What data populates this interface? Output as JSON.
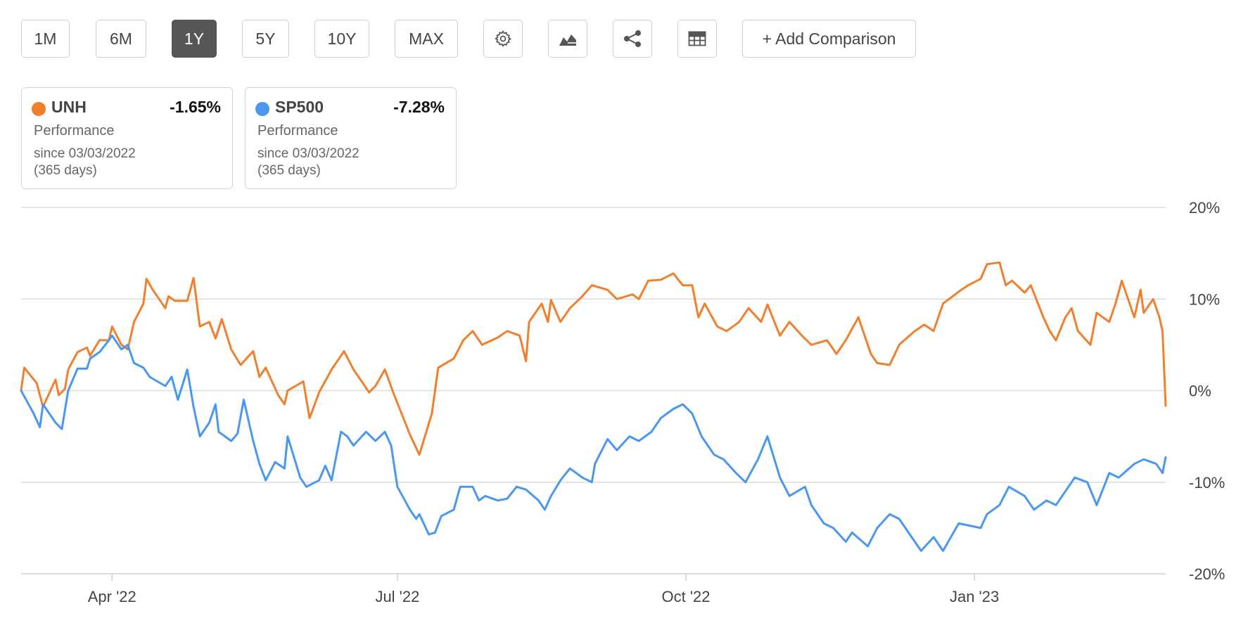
{
  "toolbar": {
    "ranges": [
      "1M",
      "6M",
      "1Y",
      "5Y",
      "10Y",
      "MAX"
    ],
    "active_range": "1Y",
    "add_comparison_label": "+ Add Comparison",
    "icons": [
      "gear-icon",
      "chart-type-icon",
      "share-icon",
      "table-icon"
    ]
  },
  "legend": [
    {
      "symbol": "UNH",
      "change": "-1.65%",
      "metric": "Performance",
      "since": "since 03/03/2022",
      "days": "(365 days)",
      "color": "#F07F2E"
    },
    {
      "symbol": "SP500",
      "change": "-7.28%",
      "metric": "Performance",
      "since": "since 03/03/2022",
      "days": "(365 days)",
      "color": "#4A97F2"
    }
  ],
  "chart_data": {
    "type": "line",
    "title": "",
    "xlabel": "",
    "ylabel": "",
    "x_range": [
      "2022-03-03",
      "2023-03-03"
    ],
    "ylim": [
      -20,
      20
    ],
    "y_ticks": [
      20,
      10,
      0,
      -10,
      -20
    ],
    "y_tick_labels": [
      "20%",
      "10%",
      "0%",
      "-10%",
      "-20%"
    ],
    "y_axis_position": "right",
    "x_ticks": [
      {
        "date": "2022-04-01",
        "label": "Apr '22"
      },
      {
        "date": "2022-07-01",
        "label": "Jul '22"
      },
      {
        "date": "2022-10-01",
        "label": "Oct '22"
      },
      {
        "date": "2023-01-01",
        "label": "Jan '23"
      }
    ],
    "grid": "horizontal",
    "series": [
      {
        "name": "UNH",
        "color": "#F07F2E",
        "points": [
          [
            "2022-03-03",
            0.0
          ],
          [
            "2022-03-04",
            2.5
          ],
          [
            "2022-03-08",
            0.8
          ],
          [
            "2022-03-10",
            -1.8
          ],
          [
            "2022-03-11",
            -1.0
          ],
          [
            "2022-03-14",
            1.2
          ],
          [
            "2022-03-15",
            -0.5
          ],
          [
            "2022-03-17",
            0.2
          ],
          [
            "2022-03-18",
            2.3
          ],
          [
            "2022-03-21",
            4.2
          ],
          [
            "2022-03-24",
            4.7
          ],
          [
            "2022-03-25",
            3.8
          ],
          [
            "2022-03-28",
            5.5
          ],
          [
            "2022-03-31",
            5.5
          ],
          [
            "2022-04-01",
            7.0
          ],
          [
            "2022-04-04",
            5.0
          ],
          [
            "2022-04-06",
            4.5
          ],
          [
            "2022-04-08",
            7.5
          ],
          [
            "2022-04-11",
            9.5
          ],
          [
            "2022-04-12",
            12.2
          ],
          [
            "2022-04-14",
            11.0
          ],
          [
            "2022-04-18",
            9.0
          ],
          [
            "2022-04-19",
            10.3
          ],
          [
            "2022-04-21",
            9.8
          ],
          [
            "2022-04-25",
            9.8
          ],
          [
            "2022-04-27",
            12.3
          ],
          [
            "2022-04-29",
            7.0
          ],
          [
            "2022-05-02",
            7.5
          ],
          [
            "2022-05-04",
            5.7
          ],
          [
            "2022-05-06",
            7.8
          ],
          [
            "2022-05-09",
            4.5
          ],
          [
            "2022-05-12",
            2.8
          ],
          [
            "2022-05-16",
            4.3
          ],
          [
            "2022-05-18",
            1.5
          ],
          [
            "2022-05-20",
            2.5
          ],
          [
            "2022-05-24",
            -0.5
          ],
          [
            "2022-05-26",
            -1.5
          ],
          [
            "2022-05-27",
            0.0
          ],
          [
            "2022-06-01",
            1.0
          ],
          [
            "2022-06-03",
            -3.0
          ],
          [
            "2022-06-06",
            -0.2
          ],
          [
            "2022-06-10",
            2.3
          ],
          [
            "2022-06-14",
            4.3
          ],
          [
            "2022-06-17",
            2.3
          ],
          [
            "2022-06-22",
            -0.2
          ],
          [
            "2022-06-24",
            0.5
          ],
          [
            "2022-06-27",
            2.3
          ],
          [
            "2022-06-30",
            -0.5
          ],
          [
            "2022-07-05",
            -4.8
          ],
          [
            "2022-07-08",
            -7.0
          ],
          [
            "2022-07-12",
            -2.5
          ],
          [
            "2022-07-14",
            2.5
          ],
          [
            "2022-07-19",
            3.5
          ],
          [
            "2022-07-22",
            5.5
          ],
          [
            "2022-07-25",
            6.5
          ],
          [
            "2022-07-28",
            5.0
          ],
          [
            "2022-08-02",
            5.8
          ],
          [
            "2022-08-05",
            6.5
          ],
          [
            "2022-08-09",
            6.0
          ],
          [
            "2022-08-11",
            3.2
          ],
          [
            "2022-08-12",
            7.5
          ],
          [
            "2022-08-16",
            9.5
          ],
          [
            "2022-08-18",
            7.5
          ],
          [
            "2022-08-19",
            9.9
          ],
          [
            "2022-08-22",
            7.5
          ],
          [
            "2022-08-25",
            9.0
          ],
          [
            "2022-08-29",
            10.3
          ],
          [
            "2022-09-01",
            11.5
          ],
          [
            "2022-09-06",
            11.0
          ],
          [
            "2022-09-09",
            10.0
          ],
          [
            "2022-09-14",
            10.5
          ],
          [
            "2022-09-16",
            10.0
          ],
          [
            "2022-09-19",
            12.0
          ],
          [
            "2022-09-23",
            12.1
          ],
          [
            "2022-09-27",
            12.8
          ],
          [
            "2022-09-30",
            11.5
          ],
          [
            "2022-10-03",
            11.5
          ],
          [
            "2022-10-05",
            8.0
          ],
          [
            "2022-10-07",
            9.5
          ],
          [
            "2022-10-11",
            7.0
          ],
          [
            "2022-10-14",
            6.5
          ],
          [
            "2022-10-18",
            7.5
          ],
          [
            "2022-10-21",
            9.0
          ],
          [
            "2022-10-25",
            7.5
          ],
          [
            "2022-10-27",
            9.4
          ],
          [
            "2022-10-31",
            6.0
          ],
          [
            "2022-11-03",
            7.5
          ],
          [
            "2022-11-07",
            6.0
          ],
          [
            "2022-11-10",
            5.0
          ],
          [
            "2022-11-15",
            5.5
          ],
          [
            "2022-11-18",
            4.0
          ],
          [
            "2022-11-21",
            5.5
          ],
          [
            "2022-11-25",
            8.0
          ],
          [
            "2022-11-29",
            4.0
          ],
          [
            "2022-12-01",
            3.0
          ],
          [
            "2022-12-05",
            2.8
          ],
          [
            "2022-12-08",
            5.0
          ],
          [
            "2022-12-13",
            6.5
          ],
          [
            "2022-12-16",
            7.2
          ],
          [
            "2022-12-19",
            6.5
          ],
          [
            "2022-12-22",
            9.5
          ],
          [
            "2022-12-27",
            10.8
          ],
          [
            "2022-12-30",
            11.5
          ],
          [
            "2023-01-03",
            12.2
          ],
          [
            "2023-01-05",
            13.8
          ],
          [
            "2023-01-09",
            14.0
          ],
          [
            "2023-01-11",
            11.5
          ],
          [
            "2023-01-13",
            12.0
          ],
          [
            "2023-01-17",
            10.7
          ],
          [
            "2023-01-19",
            11.5
          ],
          [
            "2023-01-23",
            8.0
          ],
          [
            "2023-01-25",
            6.5
          ],
          [
            "2023-01-27",
            5.5
          ],
          [
            "2023-01-30",
            8.0
          ],
          [
            "2023-02-01",
            9.0
          ],
          [
            "2023-02-03",
            6.5
          ],
          [
            "2023-02-07",
            5.0
          ],
          [
            "2023-02-09",
            8.5
          ],
          [
            "2023-02-13",
            7.5
          ],
          [
            "2023-02-15",
            9.5
          ],
          [
            "2023-02-17",
            12.0
          ],
          [
            "2023-02-21",
            8.0
          ],
          [
            "2023-02-23",
            11.0
          ],
          [
            "2023-02-24",
            8.5
          ],
          [
            "2023-02-27",
            10.0
          ],
          [
            "2023-03-01",
            8.0
          ],
          [
            "2023-03-02",
            6.5
          ],
          [
            "2023-03-03",
            -1.65
          ]
        ]
      },
      {
        "name": "SP500",
        "color": "#4A97F2",
        "points": [
          [
            "2022-03-03",
            0.0
          ],
          [
            "2022-03-07",
            -2.5
          ],
          [
            "2022-03-09",
            -4.0
          ],
          [
            "2022-03-10",
            -1.5
          ],
          [
            "2022-03-14",
            -3.5
          ],
          [
            "2022-03-16",
            -4.2
          ],
          [
            "2022-03-18",
            0.0
          ],
          [
            "2022-03-21",
            2.4
          ],
          [
            "2022-03-24",
            2.4
          ],
          [
            "2022-03-25",
            3.5
          ],
          [
            "2022-03-28",
            4.2
          ],
          [
            "2022-03-31",
            5.5
          ],
          [
            "2022-04-01",
            6.0
          ],
          [
            "2022-04-04",
            4.5
          ],
          [
            "2022-04-06",
            5.0
          ],
          [
            "2022-04-08",
            3.0
          ],
          [
            "2022-04-11",
            2.5
          ],
          [
            "2022-04-13",
            1.5
          ],
          [
            "2022-04-18",
            0.5
          ],
          [
            "2022-04-20",
            1.5
          ],
          [
            "2022-04-22",
            -1.0
          ],
          [
            "2022-04-25",
            2.3
          ],
          [
            "2022-04-27",
            -1.8
          ],
          [
            "2022-04-29",
            -5.0
          ],
          [
            "2022-05-02",
            -3.5
          ],
          [
            "2022-05-04",
            -1.5
          ],
          [
            "2022-05-05",
            -4.5
          ],
          [
            "2022-05-09",
            -5.5
          ],
          [
            "2022-05-11",
            -4.7
          ],
          [
            "2022-05-13",
            -1.0
          ],
          [
            "2022-05-16",
            -5.5
          ],
          [
            "2022-05-18",
            -8.0
          ],
          [
            "2022-05-20",
            -9.8
          ],
          [
            "2022-05-23",
            -7.8
          ],
          [
            "2022-05-26",
            -8.5
          ],
          [
            "2022-05-27",
            -5.0
          ],
          [
            "2022-05-31",
            -9.5
          ],
          [
            "2022-06-02",
            -10.5
          ],
          [
            "2022-06-06",
            -9.8
          ],
          [
            "2022-06-08",
            -8.2
          ],
          [
            "2022-06-10",
            -9.8
          ],
          [
            "2022-06-13",
            -4.5
          ],
          [
            "2022-06-15",
            -5.0
          ],
          [
            "2022-06-17",
            -6.0
          ],
          [
            "2022-06-21",
            -4.5
          ],
          [
            "2022-06-24",
            -5.5
          ],
          [
            "2022-06-27",
            -4.5
          ],
          [
            "2022-06-29",
            -6.0
          ],
          [
            "2022-07-01",
            -10.5
          ],
          [
            "2022-07-05",
            -13.0
          ],
          [
            "2022-07-07",
            -14.0
          ],
          [
            "2022-07-08",
            -13.5
          ],
          [
            "2022-07-11",
            -15.7
          ],
          [
            "2022-07-13",
            -15.5
          ],
          [
            "2022-07-15",
            -13.7
          ],
          [
            "2022-07-19",
            -13.0
          ],
          [
            "2022-07-21",
            -10.5
          ],
          [
            "2022-07-25",
            -10.5
          ],
          [
            "2022-07-27",
            -12.0
          ],
          [
            "2022-07-29",
            -11.5
          ],
          [
            "2022-08-02",
            -12.0
          ],
          [
            "2022-08-05",
            -11.8
          ],
          [
            "2022-08-08",
            -10.5
          ],
          [
            "2022-08-11",
            -10.8
          ],
          [
            "2022-08-15",
            -12.0
          ],
          [
            "2022-08-17",
            -13.0
          ],
          [
            "2022-08-19",
            -11.5
          ],
          [
            "2022-08-22",
            -9.8
          ],
          [
            "2022-08-25",
            -8.5
          ],
          [
            "2022-08-29",
            -9.5
          ],
          [
            "2022-09-01",
            -10.0
          ],
          [
            "2022-09-02",
            -8.0
          ],
          [
            "2022-09-06",
            -5.3
          ],
          [
            "2022-09-09",
            -6.5
          ],
          [
            "2022-09-13",
            -5.0
          ],
          [
            "2022-09-16",
            -5.5
          ],
          [
            "2022-09-20",
            -4.5
          ],
          [
            "2022-09-23",
            -3.0
          ],
          [
            "2022-09-27",
            -2.0
          ],
          [
            "2022-09-30",
            -1.5
          ],
          [
            "2022-10-03",
            -2.5
          ],
          [
            "2022-10-06",
            -5.0
          ],
          [
            "2022-10-10",
            -7.0
          ],
          [
            "2022-10-13",
            -7.5
          ],
          [
            "2022-10-17",
            -9.0
          ],
          [
            "2022-10-20",
            -10.0
          ],
          [
            "2022-10-24",
            -7.5
          ],
          [
            "2022-10-27",
            -5.0
          ],
          [
            "2022-10-31",
            -9.5
          ],
          [
            "2022-11-03",
            -11.5
          ],
          [
            "2022-11-08",
            -10.5
          ],
          [
            "2022-11-10",
            -12.5
          ],
          [
            "2022-11-14",
            -14.5
          ],
          [
            "2022-11-17",
            -15.0
          ],
          [
            "2022-11-21",
            -16.5
          ],
          [
            "2022-11-23",
            -15.5
          ],
          [
            "2022-11-28",
            -17.0
          ],
          [
            "2022-12-01",
            -15.0
          ],
          [
            "2022-12-05",
            -13.5
          ],
          [
            "2022-12-08",
            -14.0
          ],
          [
            "2022-12-12",
            -16.0
          ],
          [
            "2022-12-15",
            -17.5
          ],
          [
            "2022-12-19",
            -16.0
          ],
          [
            "2022-12-22",
            -17.5
          ],
          [
            "2022-12-27",
            -14.5
          ],
          [
            "2023-01-03",
            -15.0
          ],
          [
            "2023-01-05",
            -13.5
          ],
          [
            "2023-01-09",
            -12.5
          ],
          [
            "2023-01-12",
            -10.5
          ],
          [
            "2023-01-17",
            -11.5
          ],
          [
            "2023-01-20",
            -13.0
          ],
          [
            "2023-01-24",
            -12.0
          ],
          [
            "2023-01-27",
            -12.5
          ],
          [
            "2023-01-31",
            -10.5
          ],
          [
            "2023-02-02",
            -9.5
          ],
          [
            "2023-02-06",
            -10.0
          ],
          [
            "2023-02-09",
            -12.5
          ],
          [
            "2023-02-13",
            -9.0
          ],
          [
            "2023-02-16",
            -9.5
          ],
          [
            "2023-02-21",
            -8.0
          ],
          [
            "2023-02-24",
            -7.5
          ],
          [
            "2023-02-28",
            -8.0
          ],
          [
            "2023-03-02",
            -9.0
          ],
          [
            "2023-03-03",
            -7.28
          ]
        ]
      }
    ]
  }
}
